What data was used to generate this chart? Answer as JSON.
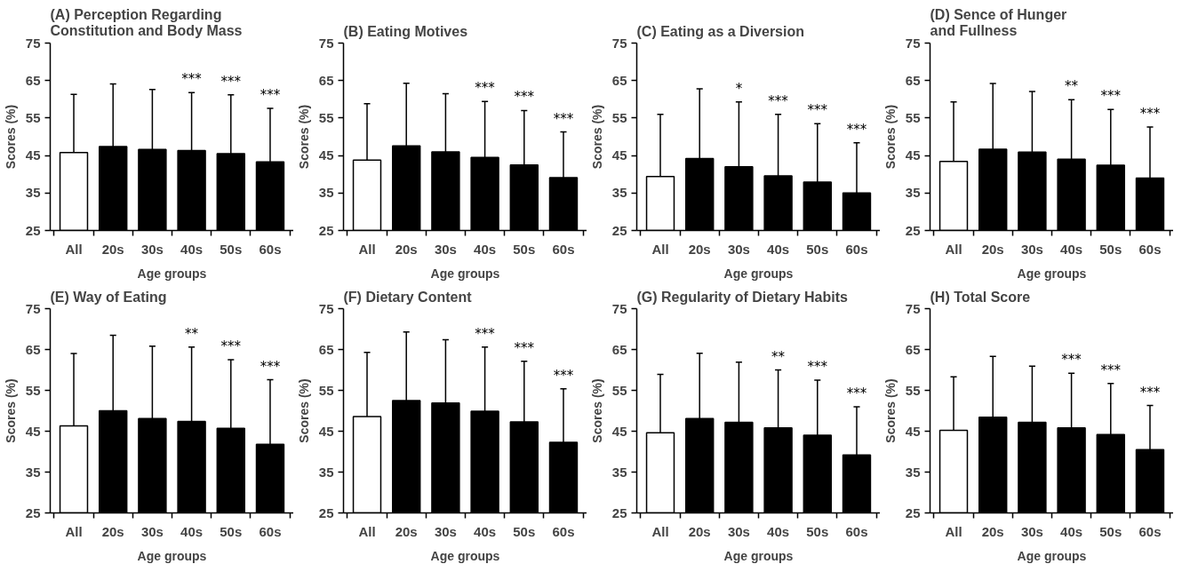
{
  "chart_data": [
    {
      "type": "bar",
      "title": "(A)  Perception Regarding\nConstitution and Body Mass",
      "xlabel": "Age groups",
      "ylabel": "Scores (%)",
      "categories": [
        "All",
        "20s",
        "30s",
        "40s",
        "50s",
        "60s"
      ],
      "values": [
        45.8,
        47.4,
        46.6,
        46.3,
        45.5,
        43.3
      ],
      "errors": [
        [
          45.8,
          61.3
        ],
        [
          47.4,
          64.1
        ],
        [
          46.6,
          62.6
        ],
        [
          46.3,
          61.8
        ],
        [
          45.5,
          61.2
        ],
        [
          43.3,
          57.6
        ]
      ],
      "colors": [
        "#ffffff",
        "#000000",
        "#000000",
        "#000000",
        "#000000",
        "#000000"
      ],
      "ylim": [
        25,
        75
      ],
      "yticks": [
        25,
        35,
        45,
        55,
        65,
        75
      ],
      "grid": false,
      "annotations": [
        "***",
        "***",
        "***"
      ]
    },
    {
      "type": "bar",
      "title": "(B)  Eating Motives",
      "xlabel": "Age groups",
      "ylabel": "Scores (%)",
      "categories": [
        "All",
        "20s",
        "30s",
        "40s",
        "50s",
        "60s"
      ],
      "values": [
        43.8,
        47.6,
        46.0,
        44.5,
        42.5,
        39.1
      ],
      "errors": [
        [
          43.8,
          58.8
        ],
        [
          47.6,
          64.3
        ],
        [
          46.0,
          61.5
        ],
        [
          44.5,
          59.4
        ],
        [
          42.5,
          57.0
        ],
        [
          39.1,
          51.3
        ]
      ],
      "colors": [
        "#ffffff",
        "#000000",
        "#000000",
        "#000000",
        "#000000",
        "#000000"
      ],
      "ylim": [
        25,
        75
      ],
      "yticks": [
        25,
        35,
        45,
        55,
        65,
        75
      ],
      "grid": false,
      "annotations": [
        "***",
        "***",
        "***"
      ]
    },
    {
      "type": "bar",
      "title": "(C)  Eating as a Diversion",
      "xlabel": "Age groups",
      "ylabel": "Scores (%)",
      "categories": [
        "All",
        "20s",
        "30s",
        "40s",
        "50s",
        "60s"
      ],
      "values": [
        39.4,
        44.2,
        42.0,
        39.6,
        37.9,
        35.0
      ],
      "errors": [
        [
          39.4,
          56.0
        ],
        [
          44.2,
          62.8
        ],
        [
          42.0,
          59.3
        ],
        [
          39.6,
          56.0
        ],
        [
          37.9,
          53.5
        ],
        [
          35.0,
          48.4
        ]
      ],
      "colors": [
        "#ffffff",
        "#000000",
        "#000000",
        "#000000",
        "#000000",
        "#000000"
      ],
      "ylim": [
        25,
        75
      ],
      "yticks": [
        25,
        35,
        45,
        55,
        65,
        75
      ],
      "grid": false,
      "annotations": [
        "*",
        "***",
        "***",
        "***"
      ]
    },
    {
      "type": "bar",
      "title": "(D) Sence of Hunger\n      and Fullness",
      "xlabel": "Age groups",
      "ylabel": "Scores (%)",
      "categories": [
        "All",
        "20s",
        "30s",
        "40s",
        "50s",
        "60s"
      ],
      "values": [
        43.4,
        46.7,
        45.9,
        44.0,
        42.4,
        39.0
      ],
      "errors": [
        [
          43.4,
          59.3
        ],
        [
          46.7,
          64.2
        ],
        [
          45.9,
          62.1
        ],
        [
          44.0,
          59.9
        ],
        [
          42.4,
          57.3
        ],
        [
          39.0,
          52.6
        ]
      ],
      "colors": [
        "#ffffff",
        "#000000",
        "#000000",
        "#000000",
        "#000000",
        "#000000"
      ],
      "ylim": [
        25,
        75
      ],
      "yticks": [
        25,
        35,
        45,
        55,
        65,
        75
      ],
      "grid": false,
      "annotations": [
        "**",
        "***",
        "***"
      ]
    },
    {
      "type": "bar",
      "title": "(E)  Way of Eating",
      "xlabel": "Age groups",
      "ylabel": "Scores (%)",
      "categories": [
        "All",
        "20s",
        "30s",
        "40s",
        "50s",
        "60s"
      ],
      "values": [
        46.3,
        50.0,
        48.1,
        47.4,
        45.7,
        41.8
      ],
      "errors": [
        [
          46.3,
          64.0
        ],
        [
          50.0,
          68.5
        ],
        [
          48.1,
          65.8
        ],
        [
          47.4,
          65.6
        ],
        [
          45.7,
          62.5
        ],
        [
          41.8,
          57.6
        ]
      ],
      "colors": [
        "#ffffff",
        "#000000",
        "#000000",
        "#000000",
        "#000000",
        "#000000"
      ],
      "ylim": [
        25,
        75
      ],
      "yticks": [
        25,
        35,
        45,
        55,
        65,
        75
      ],
      "grid": false,
      "annotations": [
        "**",
        "***",
        "***"
      ]
    },
    {
      "type": "bar",
      "title": "(F) Dietary Content",
      "xlabel": "Age groups",
      "ylabel": "Scores (%)",
      "categories": [
        "All",
        "20s",
        "30s",
        "40s",
        "50s",
        "60s"
      ],
      "values": [
        48.6,
        52.5,
        51.9,
        49.9,
        47.3,
        42.3
      ],
      "errors": [
        [
          48.6,
          64.3
        ],
        [
          52.5,
          69.3
        ],
        [
          51.9,
          67.4
        ],
        [
          49.9,
          65.6
        ],
        [
          47.3,
          62.1
        ],
        [
          42.3,
          55.4
        ]
      ],
      "colors": [
        "#ffffff",
        "#000000",
        "#000000",
        "#000000",
        "#000000",
        "#000000"
      ],
      "ylim": [
        25,
        75
      ],
      "yticks": [
        25,
        35,
        45,
        55,
        65,
        75
      ],
      "grid": false,
      "annotations": [
        "***",
        "***",
        "***"
      ]
    },
    {
      "type": "bar",
      "title": "(G)  Regularity of Dietary Habits",
      "xlabel": "Age groups",
      "ylabel": "Scores (%)",
      "categories": [
        "All",
        "20s",
        "30s",
        "40s",
        "50s",
        "60s"
      ],
      "values": [
        44.6,
        48.1,
        47.2,
        45.8,
        44.0,
        39.2
      ],
      "errors": [
        [
          44.6,
          58.9
        ],
        [
          48.1,
          64.1
        ],
        [
          47.2,
          61.9
        ],
        [
          45.8,
          60.0
        ],
        [
          44.0,
          57.5
        ],
        [
          39.2,
          51.0
        ]
      ],
      "colors": [
        "#ffffff",
        "#000000",
        "#000000",
        "#000000",
        "#000000",
        "#000000"
      ],
      "ylim": [
        25,
        75
      ],
      "yticks": [
        25,
        35,
        45,
        55,
        65,
        75
      ],
      "grid": false,
      "annotations": [
        "**",
        "***",
        "***"
      ]
    },
    {
      "type": "bar",
      "title": "(H) Total Score",
      "xlabel": "Age groups",
      "ylabel": "Scores (%)",
      "categories": [
        "All",
        "20s",
        "30s",
        "40s",
        "50s",
        "60s"
      ],
      "values": [
        45.2,
        48.4,
        47.2,
        45.8,
        44.2,
        40.5
      ],
      "errors": [
        [
          45.2,
          58.3
        ],
        [
          48.4,
          63.3
        ],
        [
          47.2,
          60.9
        ],
        [
          45.8,
          59.2
        ],
        [
          44.2,
          56.7
        ],
        [
          40.5,
          51.3
        ]
      ],
      "colors": [
        "#ffffff",
        "#000000",
        "#000000",
        "#000000",
        "#000000",
        "#000000"
      ],
      "ylim": [
        25,
        75
      ],
      "yticks": [
        25,
        35,
        45,
        55,
        65,
        75
      ],
      "grid": false,
      "annotations": [
        "***",
        "***",
        "***"
      ]
    }
  ]
}
